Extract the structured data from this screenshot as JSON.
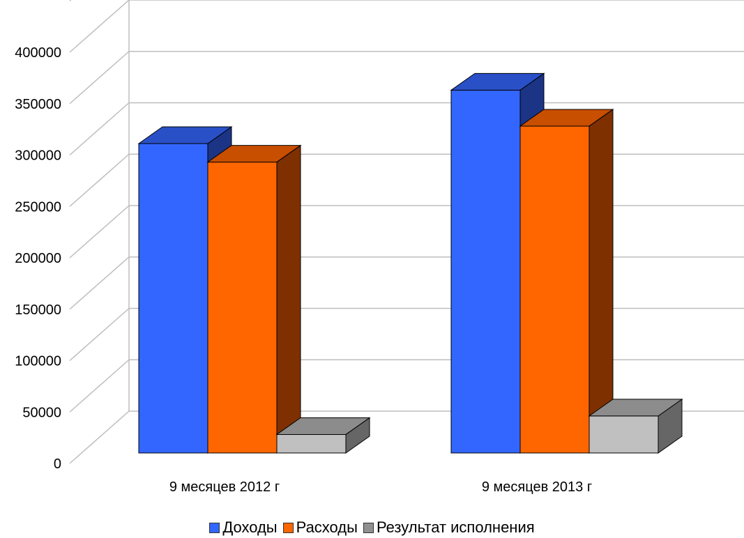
{
  "chart_data": {
    "type": "bar",
    "categories": [
      "9 месяцев 2012 г",
      "9 месяцев 2013 г"
    ],
    "series": [
      {
        "name": "Доходы",
        "values": [
          301000,
          353000
        ],
        "color": "#3366ff",
        "top_color": "#2a50c8",
        "side_color": "#1c3486"
      },
      {
        "name": "Расходы",
        "values": [
          283000,
          318000
        ],
        "color": "#ff6600",
        "top_color": "#c84e00",
        "side_color": "#7f3000"
      },
      {
        "name": "Результат исполнения",
        "values": [
          18000,
          36000
        ],
        "color": "#c0c0c0",
        "top_color": "#8c8c8c",
        "side_color": "#666666"
      }
    ],
    "yticks": [
      0,
      50000,
      100000,
      150000,
      200000,
      250000,
      300000,
      350000,
      400000
    ],
    "ylim": [
      0,
      450000
    ],
    "grid": true,
    "legend_position": "bottom",
    "title": "",
    "xlabel": "",
    "ylabel": ""
  }
}
